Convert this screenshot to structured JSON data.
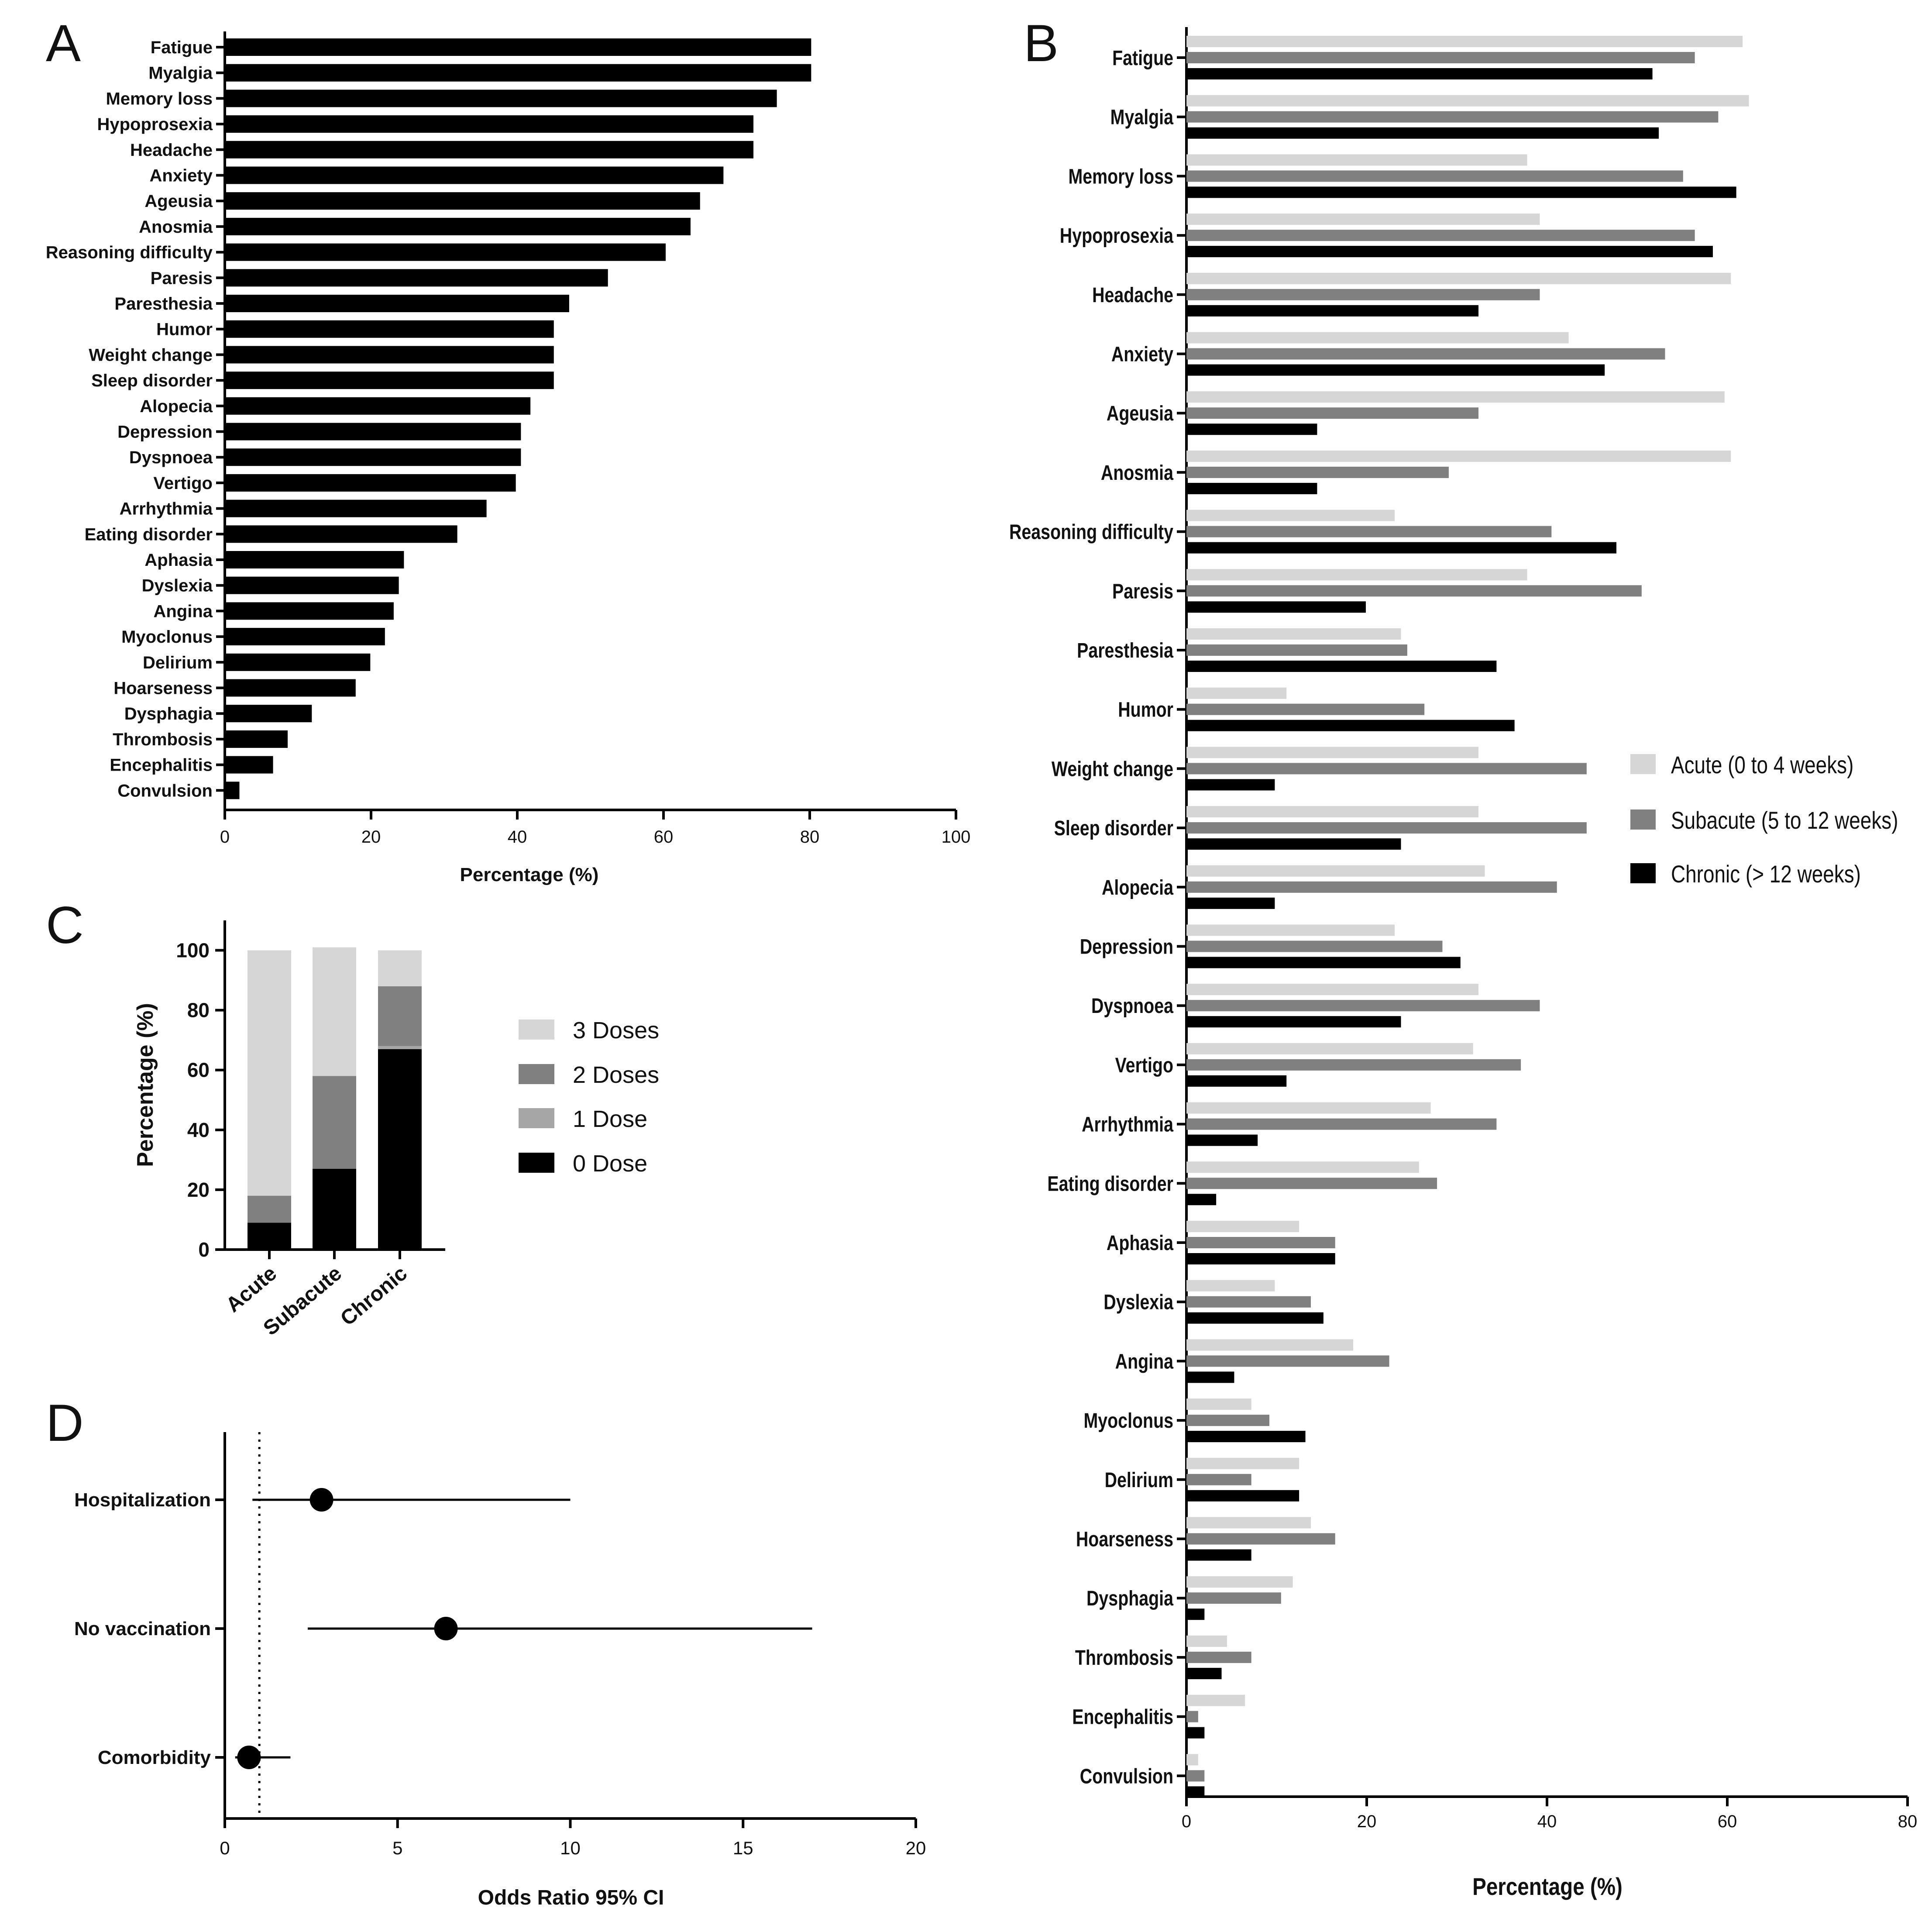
{
  "panels": {
    "A": {
      "letter": "A"
    },
    "B": {
      "letter": "B"
    },
    "C": {
      "letter": "C"
    },
    "D": {
      "letter": "D"
    }
  },
  "colors": {
    "acute": "#d6d6d6",
    "subacute": "#808080",
    "chronic": "#000000",
    "dose3": "#d6d6d6",
    "dose2": "#808080",
    "dose1": "#a6a6a6",
    "dose0": "#000000"
  },
  "chart_data": [
    {
      "panel": "A",
      "type": "bar",
      "orientation": "horizontal",
      "categories": [
        "Fatigue",
        "Myalgia",
        "Memory loss",
        "Hypoprosexia",
        "Headache",
        "Anxiety",
        "Ageusia",
        "Anosmia",
        "Reasoning difficulty",
        "Paresis",
        "Paresthesia",
        "Humor",
        "Weight change",
        "Sleep disorder",
        "Alopecia",
        "Depression",
        "Dyspnoea",
        "Vertigo",
        "Arrhythmia",
        "Eating disorder",
        "Aphasia",
        "Dyslexia",
        "Angina",
        "Myoclonus",
        "Delirium",
        "Hoarseness",
        "Dysphagia",
        "Thrombosis",
        "Encephalitis",
        "Convulsion"
      ],
      "values": [
        80.2,
        80.2,
        75.5,
        72.3,
        72.3,
        68.2,
        65.0,
        63.7,
        60.3,
        52.4,
        47.1,
        45.0,
        45.0,
        45.0,
        41.8,
        40.5,
        40.5,
        39.8,
        35.8,
        31.8,
        24.5,
        23.8,
        23.1,
        21.9,
        19.9,
        17.9,
        11.9,
        8.6,
        6.6,
        2.0
      ],
      "xlabel": "Percentage (%)",
      "xlim": [
        0,
        100
      ],
      "xticks": [
        0,
        20,
        40,
        60,
        80,
        100
      ]
    },
    {
      "panel": "B",
      "type": "bar",
      "orientation": "horizontal",
      "categories": [
        "Fatigue",
        "Myalgia",
        "Memory loss",
        "Hypoprosexia",
        "Headache",
        "Anxiety",
        "Ageusia",
        "Anosmia",
        "Reasoning difficulty",
        "Paresis",
        "Paresthesia",
        "Humor",
        "Weight change",
        "Sleep disorder",
        "Alopecia",
        "Depression",
        "Dyspnoea",
        "Vertigo",
        "Arrhythmia",
        "Eating disorder",
        "Aphasia",
        "Dyslexia",
        "Angina",
        "Myoclonus",
        "Delirium",
        "Hoarseness",
        "Dysphagia",
        "Thrombosis",
        "Encephalitis",
        "Convulsion"
      ],
      "series": [
        {
          "name": "Acute (0 to 4 weeks)",
          "values": [
            61.7,
            62.4,
            37.8,
            39.2,
            60.4,
            42.4,
            59.7,
            60.4,
            23.1,
            37.8,
            23.8,
            11.1,
            32.4,
            32.4,
            33.1,
            23.1,
            32.4,
            31.8,
            27.1,
            25.8,
            12.5,
            9.8,
            18.5,
            7.2,
            12.5,
            13.8,
            11.8,
            4.5,
            6.5,
            1.3
          ]
        },
        {
          "name": "Subacute (5 to 12 weeks)",
          "values": [
            56.4,
            59.0,
            55.1,
            56.4,
            39.2,
            53.1,
            32.4,
            29.1,
            40.5,
            50.5,
            24.5,
            26.4,
            44.4,
            44.4,
            41.1,
            28.4,
            39.2,
            37.1,
            34.4,
            27.8,
            16.5,
            13.8,
            22.5,
            9.2,
            7.2,
            16.5,
            10.5,
            7.2,
            1.3,
            2.0
          ]
        },
        {
          "name": "Chronic (> 12 weeks)",
          "values": [
            51.7,
            52.4,
            61.0,
            58.4,
            32.4,
            46.4,
            14.5,
            14.5,
            47.7,
            19.9,
            34.4,
            36.4,
            9.8,
            23.8,
            9.8,
            30.4,
            23.8,
            11.1,
            7.9,
            3.3,
            16.5,
            15.2,
            5.3,
            13.2,
            12.5,
            7.2,
            2.0,
            3.9,
            2.0,
            2.0
          ]
        }
      ],
      "xlabel": "Percentage (%)",
      "xlim": [
        0,
        80
      ],
      "xticks": [
        0,
        20,
        40,
        60,
        80
      ],
      "legend_position": "right"
    },
    {
      "panel": "C",
      "type": "bar",
      "stacked": true,
      "categories": [
        "Acute",
        "Subacute",
        "Chronic"
      ],
      "series": [
        {
          "name": "0 Dose",
          "values": [
            9,
            27,
            67
          ]
        },
        {
          "name": "1 Dose",
          "values": [
            0,
            0,
            1
          ]
        },
        {
          "name": "2 Doses",
          "values": [
            9,
            31,
            20
          ]
        },
        {
          "name": "3 Doses",
          "values": [
            82,
            43,
            12
          ]
        }
      ],
      "ylabel": "Percentage (%)",
      "ylim": [
        0,
        110
      ],
      "yticks": [
        0,
        20,
        40,
        60,
        80,
        100
      ],
      "legend_order": [
        "3 Doses",
        "2 Doses",
        "1 Dose",
        "0 Dose"
      ],
      "legend_position": "right"
    },
    {
      "panel": "D",
      "type": "scatter",
      "subtype": "forest",
      "categories": [
        "Hospitalization",
        "No vaccination",
        "Comorbidity"
      ],
      "estimates": [
        2.8,
        6.4,
        0.7
      ],
      "ci_low": [
        0.8,
        2.4,
        0.3
      ],
      "ci_high": [
        10.0,
        17.0,
        1.9
      ],
      "reference_line": 1,
      "xlabel": "Odds Ratio 95% CI",
      "xlim": [
        0,
        20
      ],
      "xticks": [
        0,
        5,
        10,
        15,
        20
      ]
    }
  ]
}
